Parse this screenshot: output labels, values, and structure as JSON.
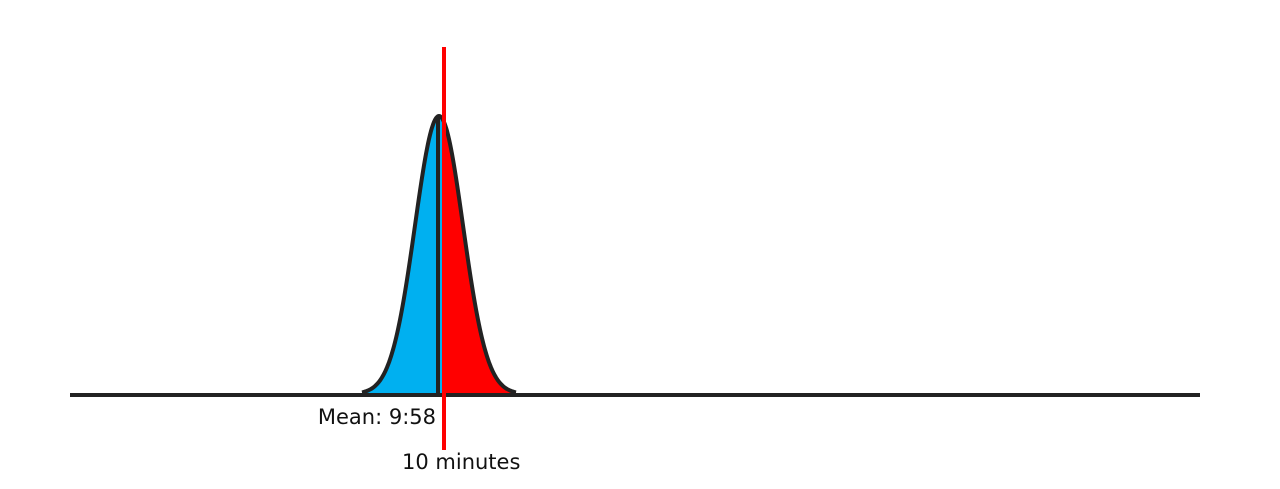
{
  "labels": {
    "mean": "Mean: 9:58",
    "target": "10 minutes"
  },
  "colors": {
    "left_fill": "#00b0f0",
    "right_fill": "#ff0000",
    "outline": "#222222",
    "target_line": "#ff0000",
    "baseline": "#222222"
  }
}
